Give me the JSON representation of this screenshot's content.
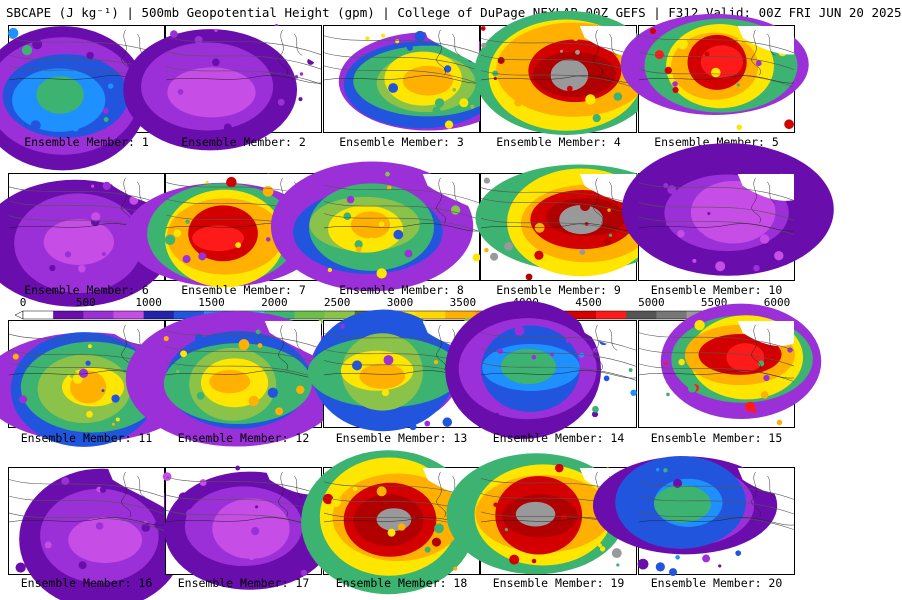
{
  "title": "SBCAPE (J kg⁻¹) | 500mb Geopotential Height (gpm) | College of DuPage NEXLAB 00Z GEFS | F312 Valid: 00Z FRI JUN 20 2025",
  "colorbar": {
    "labels": [
      "0",
      "500",
      "1000",
      "1500",
      "2000",
      "2500",
      "3000",
      "3500",
      "4000",
      "4500",
      "5000",
      "5500",
      "6000"
    ],
    "colors": [
      "#ffffff",
      "#6a0dad",
      "#9b30d9",
      "#c64de6",
      "#2222aa",
      "#2255dd",
      "#1e90ff",
      "#2ad4e6",
      "#3cb371",
      "#6cc04a",
      "#8bc34a",
      "#556b2f",
      "#ffe600",
      "#ffd700",
      "#ffb000",
      "#ff9000",
      "#8b0000",
      "#b00000",
      "#d40000",
      "#ff1a1a",
      "#555555",
      "#777777",
      "#999999",
      "#b7b7b7",
      "#cfe0e6"
    ]
  },
  "panels": [
    {
      "caption": "Ensemble Member: 1",
      "intensity": 2
    },
    {
      "caption": "Ensemble Member: 2",
      "intensity": 1
    },
    {
      "caption": "Ensemble Member: 3",
      "intensity": 3
    },
    {
      "caption": "Ensemble Member: 4",
      "intensity": 5
    },
    {
      "caption": "Ensemble Member: 5",
      "intensity": 4
    },
    {
      "caption": "Ensemble Member: 6",
      "intensity": 1
    },
    {
      "caption": "Ensemble Member: 7",
      "intensity": 4
    },
    {
      "caption": "Ensemble Member: 8",
      "intensity": 3
    },
    {
      "caption": "Ensemble Member: 9",
      "intensity": 5
    },
    {
      "caption": "Ensemble Member: 10",
      "intensity": 1
    },
    {
      "caption": "Ensemble Member: 11",
      "intensity": 3
    },
    {
      "caption": "Ensemble Member: 12",
      "intensity": 3
    },
    {
      "caption": "Ensemble Member: 13",
      "intensity": 3
    },
    {
      "caption": "Ensemble Member: 14",
      "intensity": 2
    },
    {
      "caption": "Ensemble Member: 15",
      "intensity": 4
    },
    {
      "caption": "Ensemble Member: 16",
      "intensity": 1
    },
    {
      "caption": "Ensemble Member: 17",
      "intensity": 1
    },
    {
      "caption": "Ensemble Member: 18",
      "intensity": 5
    },
    {
      "caption": "Ensemble Member: 19",
      "intensity": 5
    },
    {
      "caption": "Ensemble Member: 20",
      "intensity": 2
    }
  ]
}
